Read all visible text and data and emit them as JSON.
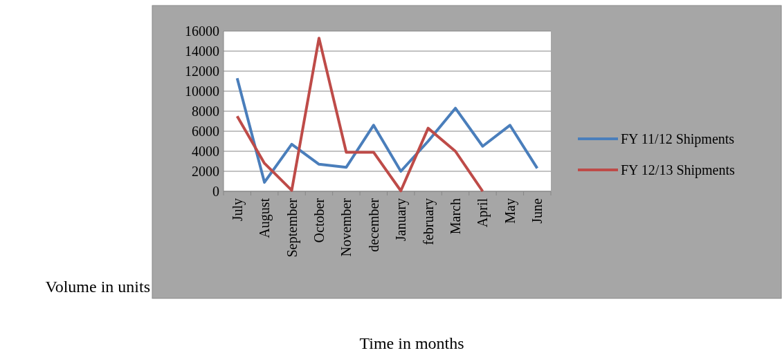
{
  "chart_data": {
    "type": "line",
    "xlabel": "Time in months",
    "ylabel": "Volume in units",
    "categories": [
      "July",
      "August",
      "September",
      "October",
      "November",
      "december",
      "January",
      "february",
      "March",
      "April",
      "May",
      "June"
    ],
    "series": [
      {
        "name": "FY 11/12 Shipments",
        "color": "#4a7ebb",
        "values": [
          11300,
          900,
          4700,
          2700,
          2400,
          6600,
          2000,
          5000,
          8300,
          4500,
          6600,
          2300
        ]
      },
      {
        "name": "FY 12/13 Shipments",
        "color": "#be4b48",
        "values": [
          7500,
          2800,
          100,
          15300,
          3900,
          3900,
          50,
          6300,
          4000,
          0,
          null,
          null
        ]
      }
    ],
    "ylim": [
      0,
      16000
    ],
    "yticks": [
      0,
      2000,
      4000,
      6000,
      8000,
      10000,
      12000,
      14000,
      16000
    ],
    "grid": "y",
    "legend": "right",
    "marker": "none",
    "line_style": "solid"
  }
}
